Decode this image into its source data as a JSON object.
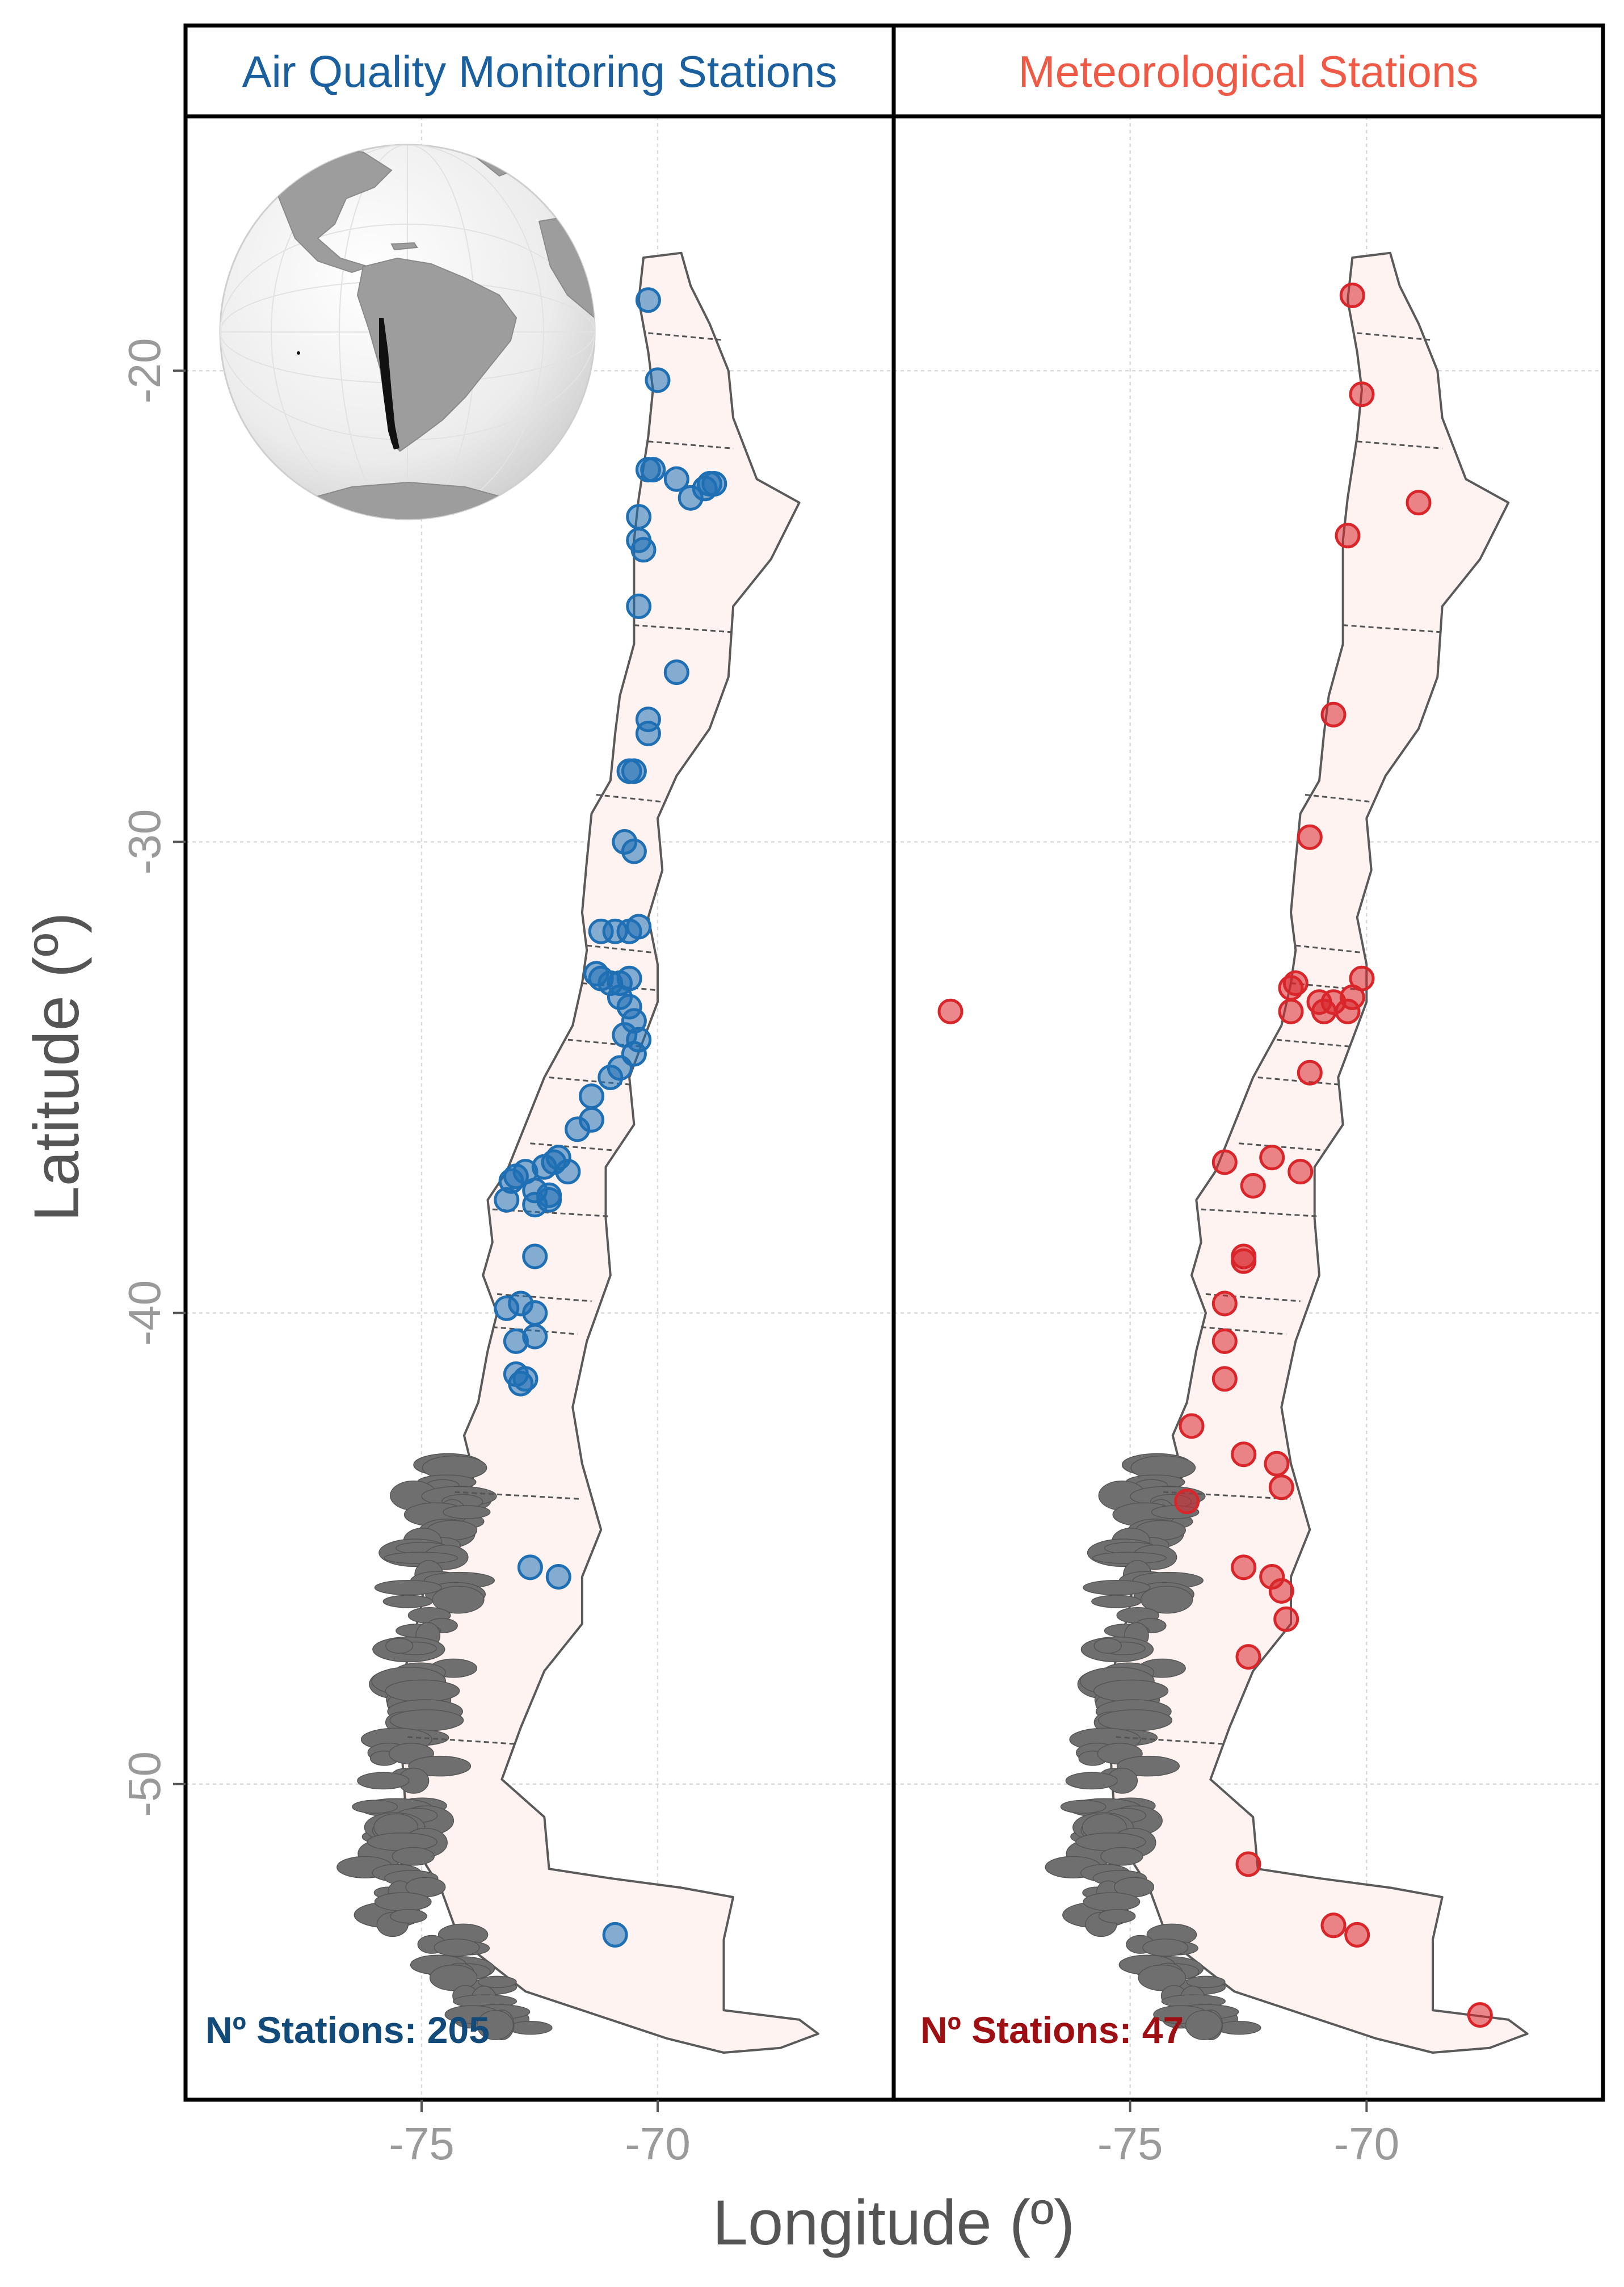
{
  "figure": {
    "xlabel": "Longitude (º)",
    "ylabel": "Latitude (º)",
    "x_ticks": [
      -75,
      -70
    ],
    "x_tick_labels": [
      "-75",
      "-70"
    ],
    "y_ticks": [
      -20,
      -30,
      -40,
      -50
    ],
    "y_tick_labels": [
      "-20",
      "-30",
      "-40",
      "-50"
    ],
    "x_range": [
      -80,
      -65
    ],
    "y_range": [
      -56.7,
      -14.6
    ],
    "grid": true,
    "inset": "orthographic globe centred on South America with Chile highlighted (top-left of left panel)"
  },
  "colors": {
    "aq": "#1f6fb4",
    "aq_text": "#1a5f9e",
    "aq_count": "#124a7a",
    "met": "#d9262b",
    "met_title": "#ee5a45",
    "met_count": "#9e0f14",
    "land": "#fff3f1",
    "outline": "#5a5a5a",
    "grid": "#d9d9d9"
  },
  "chart_data": [
    {
      "type": "scatter",
      "title": "Air Quality Monitoring Stations",
      "count_label": "Nº Stations: 205",
      "xlabel": "Longitude (º)",
      "ylabel": "Latitude (º)",
      "series": [
        {
          "color": "#1f6fb4",
          "points": [
            [
              -70.2,
              -18.5
            ],
            [
              -70.0,
              -20.2
            ],
            [
              -70.2,
              -22.1
            ],
            [
              -70.1,
              -22.1
            ],
            [
              -69.6,
              -22.3
            ],
            [
              -69.3,
              -22.7
            ],
            [
              -68.9,
              -22.4
            ],
            [
              -69.0,
              -22.5
            ],
            [
              -68.8,
              -22.4
            ],
            [
              -70.4,
              -23.1
            ],
            [
              -70.4,
              -23.6
            ],
            [
              -70.3,
              -23.8
            ],
            [
              -70.4,
              -25.0
            ],
            [
              -69.6,
              -26.4
            ],
            [
              -70.2,
              -27.4
            ],
            [
              -70.2,
              -27.7
            ],
            [
              -70.6,
              -28.5
            ],
            [
              -70.5,
              -28.5
            ],
            [
              -70.7,
              -30.0
            ],
            [
              -70.5,
              -30.2
            ],
            [
              -71.2,
              -31.9
            ],
            [
              -70.9,
              -31.9
            ],
            [
              -70.6,
              -31.9
            ],
            [
              -70.4,
              -31.8
            ],
            [
              -71.3,
              -32.8
            ],
            [
              -71.2,
              -32.9
            ],
            [
              -71.0,
              -33.0
            ],
            [
              -70.8,
              -33.0
            ],
            [
              -70.6,
              -32.9
            ],
            [
              -70.8,
              -33.3
            ],
            [
              -70.6,
              -33.5
            ],
            [
              -70.5,
              -33.8
            ],
            [
              -70.7,
              -34.1
            ],
            [
              -70.4,
              -34.2
            ],
            [
              -70.5,
              -34.5
            ],
            [
              -70.8,
              -34.8
            ],
            [
              -71.0,
              -35.0
            ],
            [
              -71.4,
              -35.4
            ],
            [
              -71.4,
              -35.9
            ],
            [
              -71.7,
              -36.1
            ],
            [
              -72.1,
              -36.7
            ],
            [
              -72.2,
              -36.8
            ],
            [
              -72.4,
              -36.9
            ],
            [
              -72.8,
              -37.0
            ],
            [
              -73.0,
              -37.1
            ],
            [
              -73.1,
              -37.2
            ],
            [
              -71.9,
              -37.0
            ],
            [
              -72.3,
              -37.5
            ],
            [
              -72.6,
              -37.4
            ],
            [
              -72.6,
              -37.7
            ],
            [
              -72.3,
              -37.6
            ],
            [
              -73.2,
              -37.6
            ],
            [
              -72.6,
              -38.8
            ],
            [
              -72.9,
              -39.8
            ],
            [
              -73.2,
              -39.9
            ],
            [
              -72.6,
              -40.0
            ],
            [
              -73.0,
              -40.6
            ],
            [
              -72.6,
              -40.5
            ],
            [
              -72.9,
              -41.5
            ],
            [
              -73.0,
              -41.3
            ],
            [
              -72.8,
              -41.4
            ],
            [
              -72.7,
              -45.4
            ],
            [
              -72.1,
              -45.6
            ],
            [
              -70.9,
              -53.2
            ]
          ]
        }
      ]
    },
    {
      "type": "scatter",
      "title": "Meteorological Stations",
      "count_label": "Nº Stations: 47",
      "xlabel": "Longitude (º)",
      "ylabel": "Latitude (º)",
      "series": [
        {
          "color": "#d9262b",
          "points": [
            [
              -78.8,
              -33.6
            ],
            [
              -70.3,
              -18.4
            ],
            [
              -70.1,
              -20.5
            ],
            [
              -68.9,
              -22.8
            ],
            [
              -70.4,
              -23.5
            ],
            [
              -70.7,
              -27.3
            ],
            [
              -71.2,
              -29.9
            ],
            [
              -71.5,
              -33.0
            ],
            [
              -71.6,
              -33.1
            ],
            [
              -71.6,
              -33.6
            ],
            [
              -71.0,
              -33.4
            ],
            [
              -70.9,
              -33.6
            ],
            [
              -70.7,
              -33.4
            ],
            [
              -70.4,
              -33.6
            ],
            [
              -70.3,
              -33.3
            ],
            [
              -70.1,
              -32.9
            ],
            [
              -71.2,
              -34.9
            ],
            [
              -73.0,
              -36.8
            ],
            [
              -72.0,
              -36.7
            ],
            [
              -72.4,
              -37.3
            ],
            [
              -71.4,
              -37.0
            ],
            [
              -72.6,
              -38.8
            ],
            [
              -72.6,
              -38.9
            ],
            [
              -73.0,
              -39.8
            ],
            [
              -73.0,
              -40.6
            ],
            [
              -73.0,
              -41.4
            ],
            [
              -73.7,
              -42.4
            ],
            [
              -72.6,
              -43.0
            ],
            [
              -71.9,
              -43.2
            ],
            [
              -71.8,
              -43.7
            ],
            [
              -73.8,
              -44.0
            ],
            [
              -72.6,
              -45.4
            ],
            [
              -72.0,
              -45.6
            ],
            [
              -71.8,
              -45.9
            ],
            [
              -71.7,
              -46.5
            ],
            [
              -72.5,
              -47.3
            ],
            [
              -72.5,
              -51.7
            ],
            [
              -70.7,
              -53.0
            ],
            [
              -70.2,
              -53.2
            ],
            [
              -67.6,
              -54.9
            ]
          ]
        }
      ]
    }
  ]
}
